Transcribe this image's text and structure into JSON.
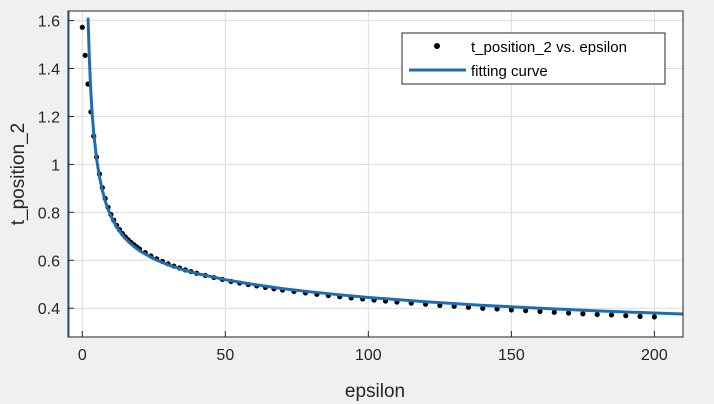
{
  "figure": {
    "background": "#f0f0f0"
  },
  "chart_data": {
    "type": "scatter",
    "xlabel": "epsilon",
    "ylabel": "t_position_2",
    "xlim": [
      -5,
      210
    ],
    "ylim": [
      0.28,
      1.64
    ],
    "xticks": [
      0,
      50,
      100,
      150,
      200
    ],
    "xtick_labels": [
      "0",
      "50",
      "100",
      "150",
      "200"
    ],
    "yticks": [
      0.4,
      0.6,
      0.8,
      1.0,
      1.2,
      1.4,
      1.6
    ],
    "ytick_labels": [
      "0.4",
      "0.6",
      "0.8",
      "1",
      "1.2",
      "1.4",
      "1.6"
    ],
    "grid": true,
    "legend_position": "top-right",
    "series": [
      {
        "name": "t_position_2 vs. epsilon",
        "kind": "points",
        "color": "#000000",
        "x": [
          0,
          1,
          2,
          3,
          4,
          5,
          6,
          7,
          8,
          9,
          10,
          11,
          12,
          13,
          14,
          15,
          16,
          17,
          18,
          19,
          20,
          22,
          24,
          26,
          28,
          30,
          32,
          34,
          36,
          38,
          40,
          43,
          46,
          49,
          52,
          55,
          58,
          61,
          64,
          67,
          70,
          74,
          78,
          82,
          86,
          90,
          94,
          98,
          102,
          106,
          110,
          115,
          120,
          125,
          130,
          135,
          140,
          145,
          150,
          155,
          160,
          165,
          170,
          175,
          180,
          185,
          190,
          195,
          200
        ],
        "y": [
          1.572,
          1.455,
          1.335,
          1.219,
          1.118,
          1.031,
          0.96,
          0.903,
          0.858,
          0.821,
          0.791,
          0.767,
          0.746,
          0.728,
          0.712,
          0.698,
          0.686,
          0.675,
          0.665,
          0.656,
          0.647,
          0.632,
          0.618,
          0.606,
          0.595,
          0.585,
          0.576,
          0.568,
          0.56,
          0.553,
          0.546,
          0.537,
          0.528,
          0.52,
          0.512,
          0.505,
          0.499,
          0.493,
          0.487,
          0.481,
          0.476,
          0.47,
          0.464,
          0.458,
          0.453,
          0.448,
          0.443,
          0.439,
          0.434,
          0.43,
          0.426,
          0.421,
          0.417,
          0.412,
          0.408,
          0.404,
          0.4,
          0.397,
          0.393,
          0.39,
          0.387,
          0.383,
          0.38,
          0.377,
          0.374,
          0.372,
          0.369,
          0.366,
          0.364
        ]
      },
      {
        "name": "fitting curve",
        "kind": "line",
        "color": "#1f6db0",
        "x": [
          2,
          2.5,
          3,
          3.5,
          4,
          5,
          6,
          7,
          8,
          9,
          10,
          12,
          14,
          16,
          18,
          20,
          25,
          30,
          35,
          40,
          50,
          60,
          70,
          80,
          90,
          100,
          120,
          140,
          160,
          180,
          200,
          210
        ],
        "y": [
          1.612,
          1.43,
          1.3,
          1.204,
          1.13,
          1.023,
          0.948,
          0.892,
          0.848,
          0.813,
          0.784,
          0.739,
          0.705,
          0.679,
          0.658,
          0.64,
          0.606,
          0.581,
          0.561,
          0.545,
          0.519,
          0.499,
          0.482,
          0.468,
          0.456,
          0.445,
          0.427,
          0.412,
          0.4,
          0.389,
          0.38,
          0.376
        ]
      }
    ],
    "vertical_line": {
      "x": -5,
      "color": "#1f6db0"
    }
  }
}
